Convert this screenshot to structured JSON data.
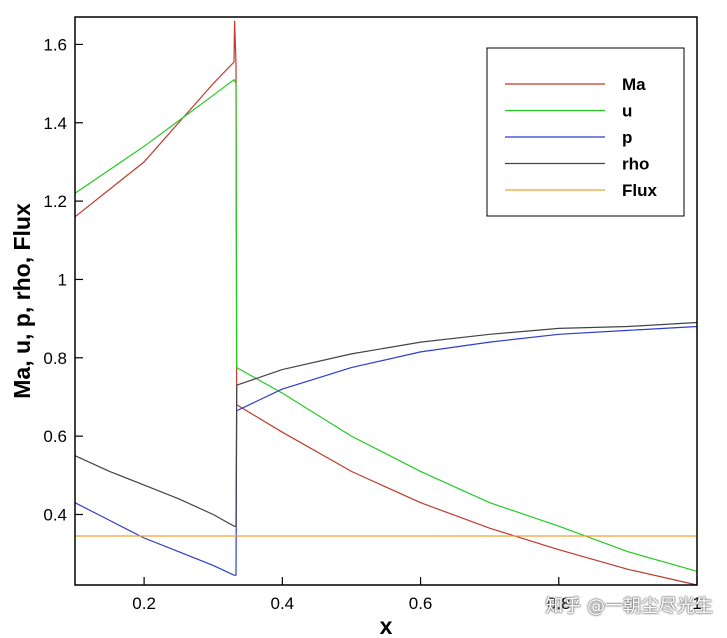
{
  "chart_data": {
    "type": "line",
    "xlabel": "x",
    "ylabel": "Ma, u, p, rho, Flux",
    "xlim": [
      0.1,
      1.0
    ],
    "ylim": [
      0.22,
      1.67
    ],
    "xticks": [
      0.2,
      0.4,
      0.6,
      0.8,
      1
    ],
    "xtick_labels": [
      "0.2",
      "0.4",
      "0.6",
      "0.8",
      "1"
    ],
    "yticks": [
      0.4,
      0.6,
      0.8,
      1.0,
      1.2,
      1.4,
      1.6
    ],
    "ytick_labels": [
      "0.4",
      "0.6",
      "0.8",
      "1",
      "1.2",
      "1.4",
      "1.6"
    ],
    "grid": false,
    "legend_position": "top-right",
    "series": [
      {
        "name": "Ma",
        "color": "#c0392b",
        "x": [
          0.1,
          0.2,
          0.3,
          0.33,
          0.331,
          0.333,
          0.334,
          0.4,
          0.5,
          0.6,
          0.7,
          0.8,
          0.9,
          1.0
        ],
        "y": [
          1.16,
          1.3,
          1.5,
          1.555,
          1.66,
          1.55,
          0.68,
          0.61,
          0.51,
          0.43,
          0.365,
          0.31,
          0.26,
          0.22
        ]
      },
      {
        "name": "u",
        "color": "#22cc22",
        "x": [
          0.1,
          0.2,
          0.3,
          0.33,
          0.333,
          0.334,
          0.4,
          0.5,
          0.6,
          0.7,
          0.8,
          0.9,
          1.0
        ],
        "y": [
          1.22,
          1.34,
          1.47,
          1.51,
          1.5,
          0.775,
          0.71,
          0.6,
          0.51,
          0.43,
          0.37,
          0.305,
          0.255
        ]
      },
      {
        "name": "p",
        "color": "#2c3ecf",
        "x": [
          0.1,
          0.15,
          0.2,
          0.25,
          0.3,
          0.33,
          0.333,
          0.334,
          0.4,
          0.5,
          0.6,
          0.7,
          0.8,
          0.9,
          1.0
        ],
        "y": [
          0.43,
          0.385,
          0.34,
          0.305,
          0.27,
          0.245,
          0.245,
          0.665,
          0.72,
          0.775,
          0.815,
          0.84,
          0.86,
          0.87,
          0.88
        ]
      },
      {
        "name": "rho",
        "color": "#444444",
        "x": [
          0.1,
          0.15,
          0.2,
          0.25,
          0.3,
          0.33,
          0.333,
          0.334,
          0.4,
          0.5,
          0.6,
          0.7,
          0.8,
          0.9,
          1.0
        ],
        "y": [
          0.55,
          0.51,
          0.475,
          0.44,
          0.4,
          0.37,
          0.37,
          0.73,
          0.77,
          0.81,
          0.84,
          0.86,
          0.875,
          0.88,
          0.89
        ]
      },
      {
        "name": "Flux",
        "color": "#f0a030",
        "x": [
          0.1,
          1.0
        ],
        "y": [
          0.345,
          0.345
        ]
      }
    ]
  },
  "watermark": "知乎 @一朝尘尽光生"
}
